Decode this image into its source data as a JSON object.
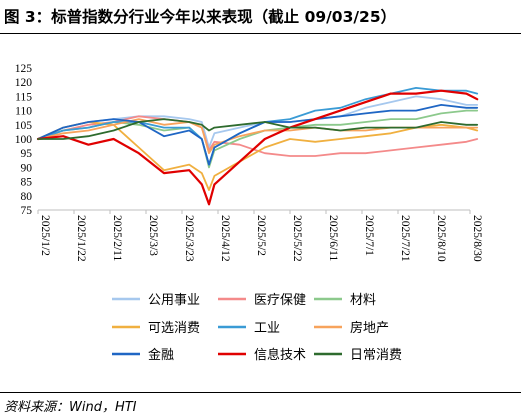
{
  "title": "图 3：标普指数分行业今年以来表现（截止 09/03/25）",
  "source": "资料来源：Wind，HTI",
  "chart_data": {
    "type": "line",
    "x": [
      "2025/1/2",
      "2025/1/16",
      "2025/1/30",
      "2025/2/13",
      "2025/2/27",
      "2025/3/13",
      "2025/3/27",
      "2025/4/3",
      "2025/4/7",
      "2025/4/10",
      "2025/4/24",
      "2025/5/8",
      "2025/5/22",
      "2025/6/5",
      "2025/6/19",
      "2025/7/3",
      "2025/7/17",
      "2025/7/31",
      "2025/8/14",
      "2025/8/28",
      "2025/9/3"
    ],
    "x_tick_labels": [
      "2025/1/2",
      "2025/1/22",
      "2025/2/11",
      "2025/3/3",
      "2025/3/23",
      "2025/4/12",
      "2025/5/2",
      "2025/5/22",
      "2025/6/11",
      "2025/7/1",
      "2025/7/21",
      "2025/8/10",
      "2025/8/30"
    ],
    "ylim": [
      75,
      125
    ],
    "y_ticks": [
      75,
      80,
      85,
      90,
      95,
      100,
      105,
      110,
      115,
      120,
      125
    ],
    "grid": false,
    "legend_position": "bottom",
    "series": [
      {
        "name": "公用事业",
        "color": "#a6c8ee",
        "values": [
          100,
          104,
          106,
          107,
          108,
          108,
          107,
          106,
          97,
          102,
          104,
          106,
          106,
          107,
          108,
          111,
          113,
          115,
          114,
          112,
          112
        ]
      },
      {
        "name": "医疗保健",
        "color": "#f48a8a",
        "values": [
          100,
          103,
          105,
          106,
          108,
          107,
          106,
          104,
          96,
          99,
          98,
          95,
          94,
          94,
          95,
          95,
          96,
          97,
          98,
          99,
          100
        ]
      },
      {
        "name": "材料",
        "color": "#8cc98c",
        "values": [
          100,
          103,
          104,
          106,
          105,
          103,
          104,
          100,
          90,
          96,
          100,
          103,
          104,
          105,
          105,
          106,
          107,
          107,
          109,
          110,
          110
        ]
      },
      {
        "name": "可选消费",
        "color": "#f0b040",
        "values": [
          100,
          104,
          106,
          105,
          97,
          89,
          91,
          88,
          82,
          87,
          92,
          97,
          100,
          99,
          100,
          101,
          102,
          104,
          105,
          104,
          103
        ]
      },
      {
        "name": "工业",
        "color": "#3a9bd5",
        "values": [
          100,
          103,
          104,
          106,
          106,
          104,
          104,
          100,
          91,
          97,
          102,
          106,
          107,
          110,
          111,
          114,
          116,
          118,
          117,
          117,
          116
        ]
      },
      {
        "name": "房地产",
        "color": "#f7a35c",
        "values": [
          100,
          102,
          103,
          105,
          107,
          105,
          106,
          104,
          95,
          98,
          101,
          103,
          103,
          104,
          103,
          103,
          104,
          104,
          104,
          104,
          104
        ]
      },
      {
        "name": "金融",
        "color": "#1f66c4",
        "values": [
          100,
          104,
          106,
          107,
          106,
          101,
          103,
          100,
          91,
          97,
          102,
          106,
          106,
          107,
          108,
          109,
          110,
          110,
          112,
          111,
          111
        ]
      },
      {
        "name": "信息技术",
        "color": "#e00000",
        "values": [
          100,
          101,
          98,
          100,
          95,
          88,
          89,
          84,
          77,
          84,
          92,
          100,
          104,
          107,
          110,
          113,
          116,
          116,
          117,
          116,
          114
        ]
      },
      {
        "name": "日常消费",
        "color": "#2e6b2e",
        "values": [
          100,
          100,
          101,
          103,
          106,
          107,
          106,
          105,
          103,
          104,
          105,
          106,
          104,
          104,
          103,
          104,
          104,
          104,
          106,
          105,
          105
        ]
      }
    ]
  }
}
